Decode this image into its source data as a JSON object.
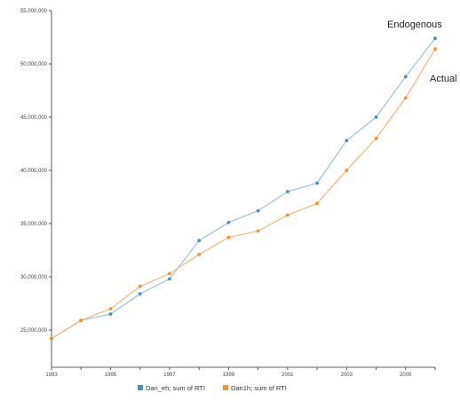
{
  "chart_data": {
    "type": "line",
    "title": "",
    "xlabel": "",
    "ylabel": "",
    "x": [
      1993,
      1994,
      1995,
      1996,
      1997,
      1998,
      1999,
      2000,
      2001,
      2002,
      2003,
      2004,
      2005,
      2006
    ],
    "xlim": [
      1993,
      2006
    ],
    "ylim": [
      21500000,
      55000000
    ],
    "x_ticks": [
      1993,
      1995,
      1997,
      1999,
      2001,
      2003,
      2005
    ],
    "x_tick_labels": [
      "1993",
      "1995",
      "1997",
      "1999",
      "2001",
      "2003",
      "2005"
    ],
    "y_ticks": [
      25000000,
      30000000,
      35000000,
      40000000,
      45000000,
      50000000,
      55000000
    ],
    "y_tick_labels": [
      "25,000,000",
      "30,000,000",
      "35,000,000",
      "40,000,000",
      "45,000,000",
      "50,000,000",
      "55,000,000"
    ],
    "grid": false,
    "legend_position": "bottom-center",
    "series": [
      {
        "name": "Dan_eh; sum of RTI",
        "color": "#4a90c9",
        "line_color": "#9cc3df",
        "values": [
          24200000,
          25900000,
          26500000,
          28400000,
          29800000,
          33400000,
          35100000,
          36200000,
          38000000,
          38800000,
          42800000,
          45000000,
          48800000,
          52400000
        ]
      },
      {
        "name": "Dan1h; sum of RTI",
        "color": "#f5922f",
        "line_color": "#f8b77a",
        "values": [
          24200000,
          25900000,
          27000000,
          29100000,
          30300000,
          32100000,
          33700000,
          34300000,
          35800000,
          36900000,
          40000000,
          43000000,
          46800000,
          51400000
        ]
      }
    ],
    "annotations": [
      {
        "text": "Endogenous",
        "series": 0
      },
      {
        "text": "Actual",
        "series": 1
      }
    ]
  }
}
